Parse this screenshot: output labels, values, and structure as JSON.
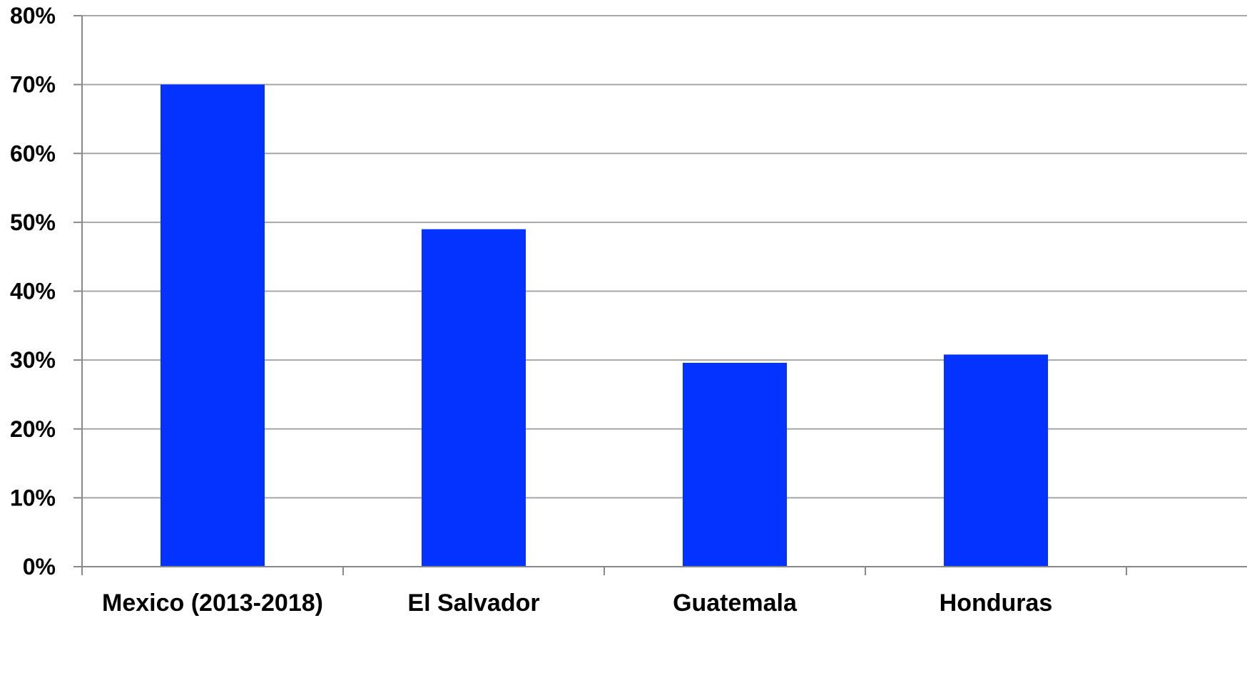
{
  "chart_data": {
    "type": "bar",
    "title": "",
    "xlabel": "",
    "ylabel": "",
    "categories": [
      "Mexico (2013-2018)",
      "El Salvador",
      "Guatemala",
      "Honduras"
    ],
    "values": [
      70,
      49,
      29.6,
      30.8
    ],
    "ylim": [
      0,
      80
    ],
    "yticks": [
      0,
      10,
      20,
      30,
      40,
      50,
      60,
      70,
      80
    ],
    "ytick_labels": [
      "0%",
      "10%",
      "20%",
      "30%",
      "40%",
      "50%",
      "60%",
      "70%",
      "80%"
    ],
    "grid": true,
    "legend": "none",
    "bar_color": "#0433ff"
  }
}
